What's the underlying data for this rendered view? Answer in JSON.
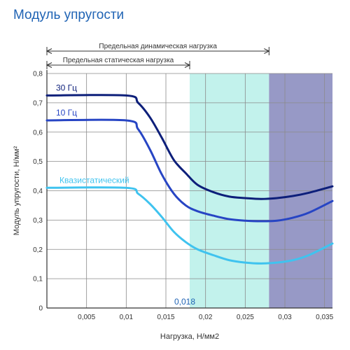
{
  "chart_data": {
    "type": "line",
    "title": "Модуль упругости",
    "xlabel": "Нагрузка, Н/мм2",
    "ylabel": "Модуль упругости, Н/мм²",
    "xlim": [
      0,
      0.036
    ],
    "ylim": [
      0,
      0.8
    ],
    "x_ticks": [
      0.005,
      0.01,
      0.015,
      0.02,
      0.025,
      0.03,
      0.035
    ],
    "x_tick_labels": [
      "0,005",
      "0,01",
      "0,015",
      "0,02",
      "0,025",
      "0,03",
      "0,035"
    ],
    "y_ticks": [
      0,
      0.1,
      0.2,
      0.3,
      0.4,
      0.5,
      0.6,
      0.7,
      0.8
    ],
    "y_tick_labels": [
      "0",
      "0,1",
      "0,2",
      "0,3",
      "0,4",
      "0,5",
      "0,6",
      "0,7",
      "0,8"
    ],
    "grid": true,
    "series": [
      {
        "name": "30 Гц",
        "color": "#0d1f7a",
        "x": [
          0,
          0.01,
          0.0115,
          0.013,
          0.0145,
          0.016,
          0.0175,
          0.019,
          0.021,
          0.023,
          0.025,
          0.027,
          0.029,
          0.031,
          0.033,
          0.036
        ],
        "y": [
          0.725,
          0.725,
          0.7,
          0.65,
          0.58,
          0.505,
          0.46,
          0.42,
          0.395,
          0.38,
          0.375,
          0.372,
          0.375,
          0.382,
          0.393,
          0.415
        ]
      },
      {
        "name": "10 Гц",
        "color": "#2745c4",
        "x": [
          0,
          0.01,
          0.0115,
          0.013,
          0.0145,
          0.016,
          0.0175,
          0.019,
          0.021,
          0.023,
          0.025,
          0.027,
          0.029,
          0.031,
          0.033,
          0.036
        ],
        "y": [
          0.64,
          0.64,
          0.61,
          0.54,
          0.455,
          0.39,
          0.35,
          0.33,
          0.315,
          0.303,
          0.298,
          0.296,
          0.298,
          0.308,
          0.325,
          0.365
        ]
      },
      {
        "name": "Квазистатический",
        "color": "#3fc3ef",
        "x": [
          0,
          0.01,
          0.0115,
          0.013,
          0.0145,
          0.016,
          0.0175,
          0.019,
          0.021,
          0.023,
          0.025,
          0.027,
          0.029,
          0.031,
          0.033,
          0.036
        ],
        "y": [
          0.41,
          0.41,
          0.39,
          0.355,
          0.31,
          0.26,
          0.225,
          0.2,
          0.18,
          0.163,
          0.155,
          0.152,
          0.155,
          0.163,
          0.18,
          0.22
        ]
      }
    ],
    "regions": [
      {
        "from": 0.018,
        "to": 0.028,
        "color": "#c2f2ec"
      },
      {
        "from": 0.028,
        "to": 0.036,
        "color": "#9799c6"
      }
    ],
    "brackets": [
      {
        "label": "Предельная динамическая нагрузка",
        "from": 0,
        "to": 0.028
      },
      {
        "label": "Предельная статическая нагрузка",
        "from": 0,
        "to": 0.018
      }
    ],
    "marker": {
      "label": "0,018",
      "x": 0.018
    }
  }
}
